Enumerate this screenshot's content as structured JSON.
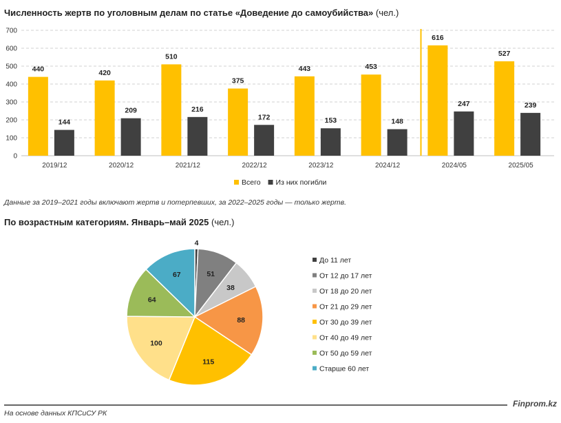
{
  "bar_title": {
    "bold": "Численность жертв по уголовным делам по статье «Доведение до самоубийства»",
    "rest": " (чел.)"
  },
  "bar_note": "Данные за 2019–2021 годы включают жертв и потерпевших, за 2022–2025 годы — только жертв.",
  "pie_title": {
    "bold": "По возрастным категориям. Январь–май 2025",
    "rest": " (чел.)"
  },
  "source": "На основе данных КПСиСУ РК",
  "brand": "Finprom.kz",
  "chart_data": [
    {
      "type": "bar",
      "title": "Численность жертв по уголовным делам по статье «Доведение до самоубийства» (чел.)",
      "categories": [
        "2019/12",
        "2020/12",
        "2021/12",
        "2022/12",
        "2023/12",
        "2024/12",
        "2024/05",
        "2025/05"
      ],
      "series": [
        {
          "name": "Всего",
          "color": "#FFC000",
          "values": [
            440,
            420,
            510,
            375,
            443,
            453,
            616,
            527
          ]
        },
        {
          "name": "Из них погибли",
          "color": "#404040",
          "values": [
            144,
            209,
            216,
            172,
            153,
            148,
            247,
            239
          ]
        }
      ],
      "ylim": [
        0,
        700
      ],
      "yticks": [
        0,
        100,
        200,
        300,
        400,
        500,
        600,
        700
      ],
      "grid": true,
      "legend": "bottom",
      "divider_after_category": "2024/12",
      "divider_color": "#FFC000"
    },
    {
      "type": "pie",
      "title": "По возрастным категориям. Январь–май 2025 (чел.)",
      "legend": "right",
      "slices": [
        {
          "label": "До 11 лет",
          "value": 4,
          "color": "#404040"
        },
        {
          "label": "От 12 до 17 лет",
          "value": 51,
          "color": "#808080"
        },
        {
          "label": "От 18 до 20 лет",
          "value": 38,
          "color": "#C8C8C8"
        },
        {
          "label": "От 21 до 29 лет",
          "value": 88,
          "color": "#F79646"
        },
        {
          "label": "От 30 до 39 лет",
          "value": 115,
          "color": "#FFC000"
        },
        {
          "label": "От 40 до 49 лет",
          "value": 100,
          "color": "#FFE08A"
        },
        {
          "label": "От 50 до 59 лет",
          "value": 64,
          "color": "#9BBB59"
        },
        {
          "label": "Старше 60 лет",
          "value": 67,
          "color": "#4BACC6"
        }
      ]
    }
  ]
}
